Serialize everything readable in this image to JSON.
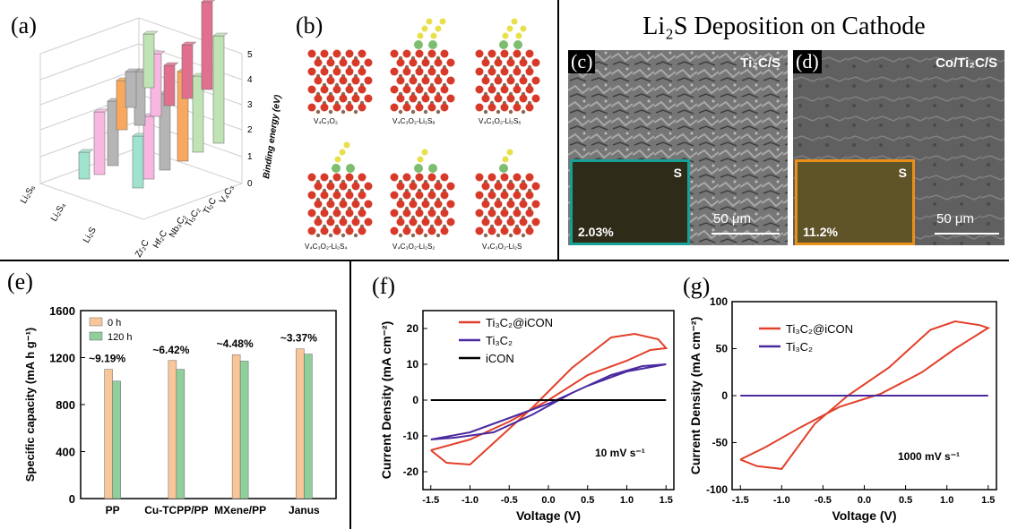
{
  "panels": {
    "a": "(a)",
    "b": "(b)",
    "c": "(c)",
    "d": "(d)",
    "e": "(e)",
    "f": "(f)",
    "g": "(g)"
  },
  "panel_a": {
    "zlabel": "Binding energy (eV)",
    "zticks": [
      "0",
      "1",
      "2",
      "3",
      "4",
      "5"
    ],
    "species": [
      "Li₂S₆",
      "Li₂S₄",
      "Li₂S"
    ],
    "materials": [
      "V₄C₃",
      "Ti₂C",
      "Ti₃C₂",
      "Nb₃C₂",
      "Hf₂C",
      "Zr₂C"
    ],
    "colors": {
      "teal": "#9fe3cf",
      "pink": "#f7b7e1",
      "gray": "#b5b5b5",
      "orange": "#f9a95e",
      "green": "#bfe3b4",
      "red": "#e0708e"
    }
  },
  "panel_b": {
    "structures": [
      "V₄C₃O₂",
      "V₄C₃O₂-Li₂S₈",
      "V₄C₃O₂-Li₂S₆",
      "V₄C₃O₂-Li₂S₄",
      "V₄C₃O₂-Li₂S₂",
      "V₄C₃O₂-Li₂S"
    ]
  },
  "sem": {
    "title": "Li₂S Deposition on Cathode",
    "c": {
      "label": "Ti₂C/S",
      "inset": "S",
      "percent": "2.03%",
      "scale": "50 μm",
      "border": "#17a196"
    },
    "d": {
      "label": "Co/Ti₂C/S",
      "inset": "S",
      "percent": "11.2%",
      "scale": "50 μm",
      "border": "#e8901a"
    }
  },
  "chart_data": [
    {
      "type": "bar",
      "ylabel": "Specific capacity (mA h g⁻¹)",
      "categories": [
        "PP",
        "Cu-TCPP/PP",
        "MXene/PP",
        "Janus"
      ],
      "ylim": [
        0,
        1600
      ],
      "yticks": [
        "0",
        "400",
        "800",
        "1200",
        "1600"
      ],
      "series": [
        {
          "name": "0 h",
          "color": "#f9c69a",
          "values": [
            1100,
            1175,
            1225,
            1275
          ]
        },
        {
          "name": "120 h",
          "color": "#8fcf9c",
          "values": [
            1000,
            1100,
            1170,
            1230
          ]
        }
      ],
      "annotations": [
        "~9.19%",
        "~6.42%",
        "~4.48%",
        "~3.37%"
      ]
    },
    {
      "type": "line",
      "xlabel": "Voltage (V)",
      "ylabel": "Current Density (mA cm⁻²)",
      "xlim": [
        -1.6,
        1.6
      ],
      "ylim": [
        -25,
        25
      ],
      "xticks": [
        "-1.5",
        "-1.0",
        "-0.5",
        "0.0",
        "0.5",
        "1.0",
        "1.5"
      ],
      "yticks": [
        "-20",
        "-10",
        "0",
        "10",
        "20"
      ],
      "annotation": "10 mV s⁻¹",
      "series": [
        {
          "name": "Ti₃C₂@iCON",
          "color": "#e2402a"
        },
        {
          "name": "Ti₃C₂",
          "color": "#4b2aa0"
        },
        {
          "name": "iCON",
          "color": "#000000"
        }
      ]
    },
    {
      "type": "line",
      "xlabel": "Voltage (V)",
      "ylabel": "Current Density (mA cm⁻²)",
      "xlim": [
        -1.6,
        1.6
      ],
      "ylim": [
        -100,
        100
      ],
      "xticks": [
        "-1.5",
        "-1.0",
        "-0.5",
        "0.0",
        "0.5",
        "1.0",
        "1.5"
      ],
      "yticks": [
        "-100",
        "-50",
        "0",
        "50",
        "100"
      ],
      "annotation": "1000 mV s⁻¹",
      "series": [
        {
          "name": "Ti₃C₂@iCON",
          "color": "#e2402a"
        },
        {
          "name": "Ti₃C₂",
          "color": "#4b2aa0"
        }
      ]
    }
  ]
}
